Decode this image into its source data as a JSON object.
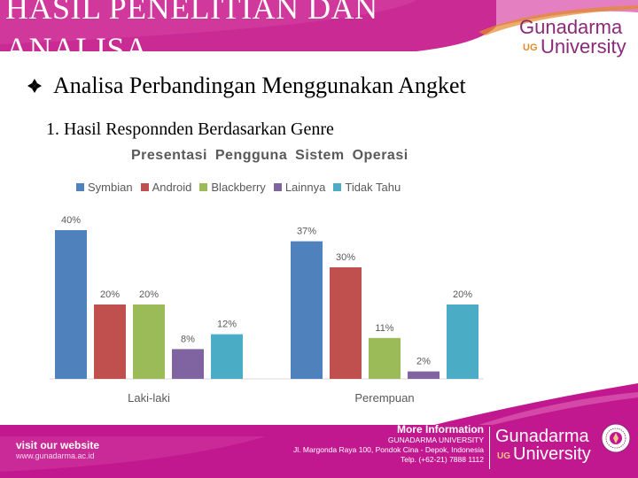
{
  "slide": {
    "title": "HASIL PENELITIAN DAN ANALISA",
    "bullet_heading": "Analisa Perbandingan Menggunakan Angket",
    "sub_heading": "1. Hasil Responnden Berdasarkan Genre"
  },
  "logo_top": {
    "name_line1": "Gunadarma",
    "name_line2": "University",
    "mark": "UG"
  },
  "chart_data": {
    "type": "bar",
    "title": "Presentasi Pengguna Sistem Operasi",
    "categories": [
      "Laki-laki",
      "Perempuan"
    ],
    "series": [
      {
        "name": "Symbian",
        "color": "#4f81bd",
        "values": [
          40,
          37
        ]
      },
      {
        "name": "Android",
        "color": "#c0504d",
        "values": [
          20,
          30
        ]
      },
      {
        "name": "Blackberry",
        "color": "#9bbb59",
        "values": [
          20,
          11
        ]
      },
      {
        "name": "Lainnya",
        "color": "#8064a2",
        "values": [
          8,
          2
        ]
      },
      {
        "name": "Tidak Tahu",
        "color": "#4bacc6",
        "values": [
          12,
          20
        ]
      }
    ],
    "value_suffix": "%",
    "ylim": [
      0,
      40
    ],
    "grid": false,
    "legend_position": "top"
  },
  "footer": {
    "visit_title": "visit our website",
    "visit_url": "www.gunadarma.ac.id",
    "more_info_title": "More Information",
    "more_info_org": "GUNADARMA UNIVERSITY",
    "address": "Jl. Margonda Raya 100, Pondok Cina - Depok, Indonesia",
    "phone": "Telp. (+62-21) 7888 1112"
  },
  "logo_bottom": {
    "name_line1": "Gunadarma",
    "name_line2": "University",
    "mark": "UG"
  },
  "colors": {
    "brand_magenta": "#c2188f",
    "brand_purple": "#8a2a78",
    "accent_orange": "#e38a2a"
  }
}
